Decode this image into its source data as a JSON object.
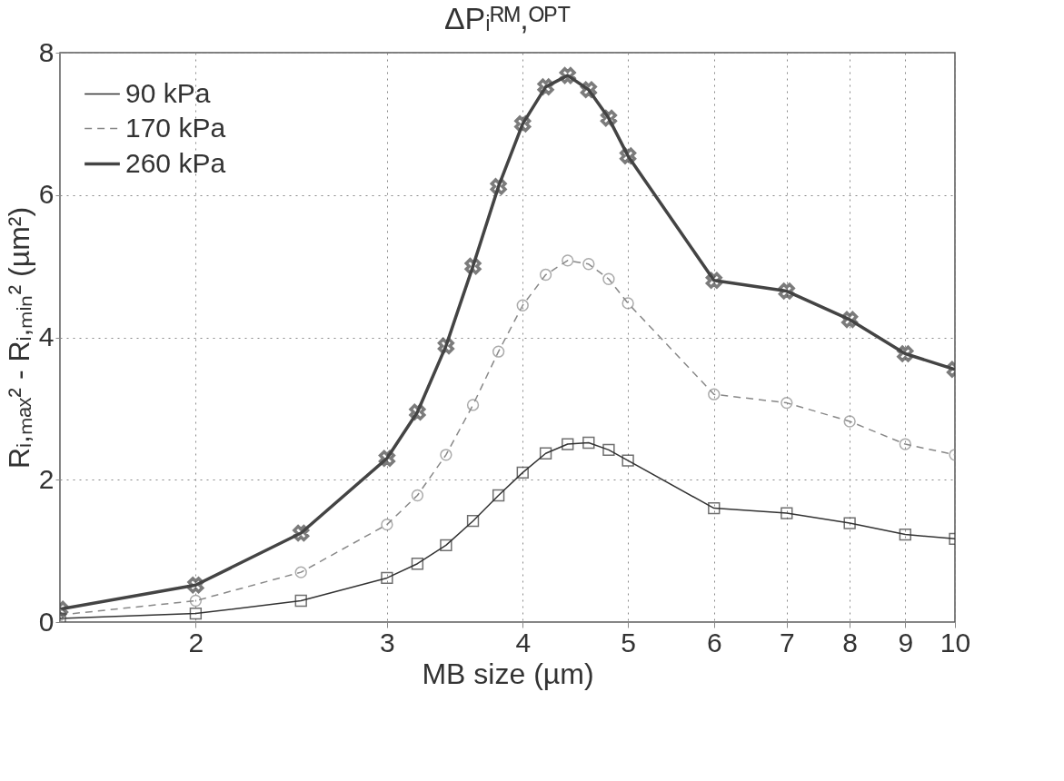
{
  "chart_data": {
    "type": "line",
    "title": "ΔPᵢᴿᴹ,ᴼᴾᵀ",
    "xlabel": "MB size (µm)",
    "ylabel": "Rᵢ,ₘₐₓ² - Rᵢ,ₘᵢₙ² (µm²)",
    "x": [
      1.5,
      2,
      2.5,
      3,
      3.2,
      3.4,
      3.6,
      3.8,
      4,
      4.2,
      4.4,
      4.6,
      4.8,
      5,
      6,
      7,
      8,
      9,
      10
    ],
    "series": [
      {
        "name": "90 kPa",
        "color": "#333333",
        "marker": "square",
        "line_style": "solid",
        "values": [
          0.05,
          0.12,
          0.3,
          0.62,
          0.82,
          1.08,
          1.42,
          1.78,
          2.1,
          2.37,
          2.5,
          2.52,
          2.42,
          2.27,
          1.6,
          1.53,
          1.39,
          1.23,
          1.17
        ]
      },
      {
        "name": "170 kPa",
        "color": "#888888",
        "marker": "circle",
        "line_style": "dashed",
        "values": [
          0.1,
          0.3,
          0.7,
          1.37,
          1.78,
          2.35,
          3.05,
          3.8,
          4.45,
          4.88,
          5.08,
          5.03,
          4.82,
          4.48,
          3.2,
          3.08,
          2.82,
          2.5,
          2.35
        ]
      },
      {
        "name": "260 kPa",
        "color": "#444444",
        "marker": "cross",
        "line_style": "solid",
        "values": [
          0.18,
          0.52,
          1.25,
          2.3,
          2.95,
          3.88,
          5.0,
          6.12,
          7.0,
          7.52,
          7.68,
          7.48,
          7.08,
          6.55,
          4.8,
          4.65,
          4.25,
          3.77,
          3.55
        ]
      }
    ],
    "log": "x",
    "xlim": [
      1.5,
      10
    ],
    "xticks": [
      2,
      3,
      4,
      5,
      6,
      7,
      8,
      9,
      10
    ],
    "ylim": [
      0,
      8
    ],
    "yticks": [
      0,
      2,
      4,
      6,
      8
    ],
    "grid": true,
    "legend": "top left"
  }
}
